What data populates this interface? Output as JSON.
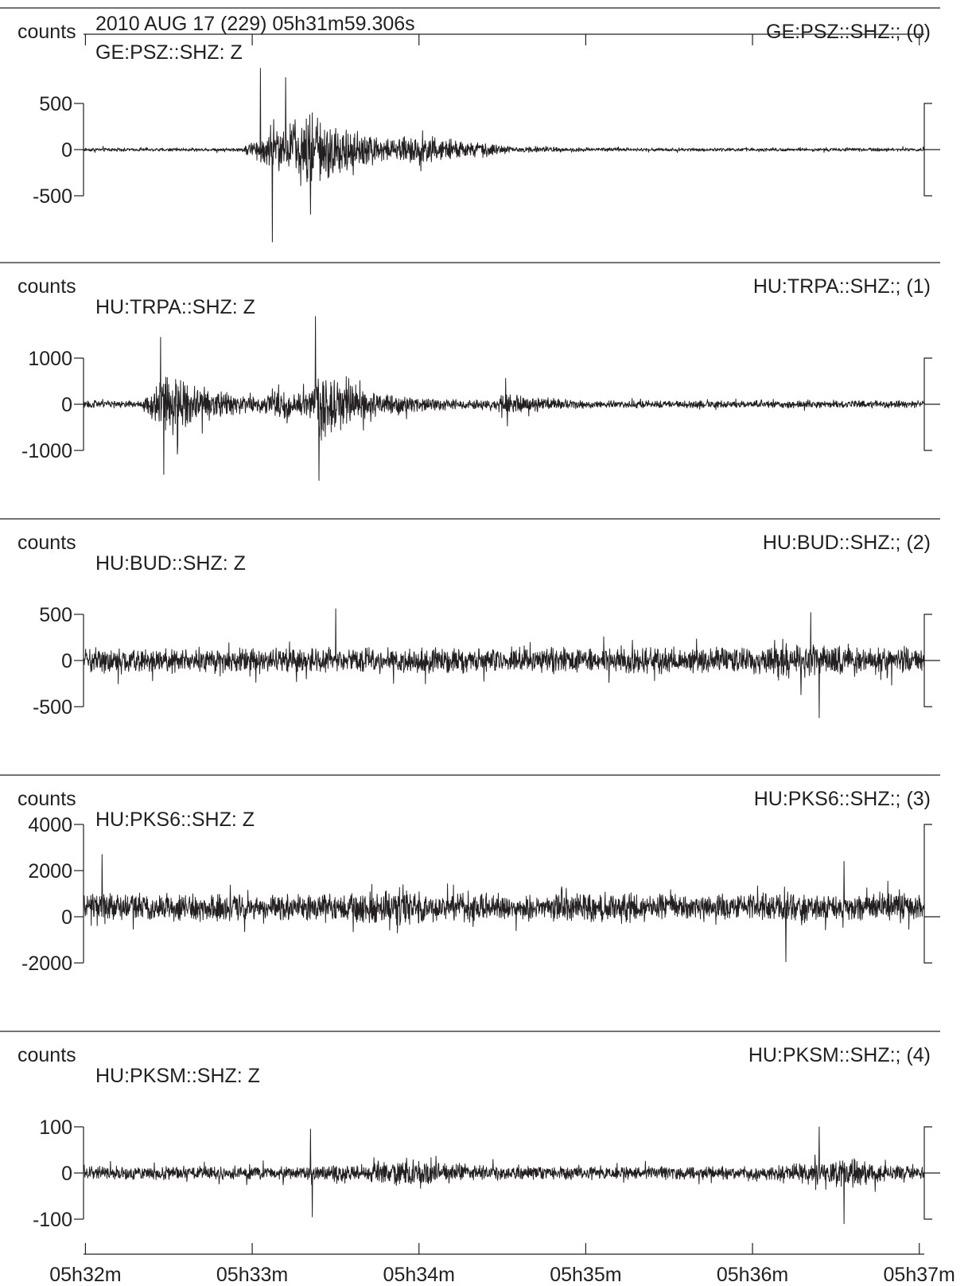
{
  "header": {
    "datetime": "2010 AUG 17 (229)  05h31m59.306s"
  },
  "chart_data": {
    "type": "line",
    "chart_kind": "seismogram",
    "color": "#231f20",
    "xaxis": {
      "start_time": "05h31m59.306s",
      "ticks": [
        "05h32m",
        "05h33m",
        "05h34m",
        "05h35m",
        "05h36m",
        "05h37m"
      ]
    },
    "panels": [
      {
        "unit_label": "counts",
        "right_label": "GE:PSZ::SHZ:; (0)",
        "trace_label": "GE:PSZ::SHZ: Z",
        "yticks": [
          500,
          0,
          -500
        ],
        "ylim": [
          -1000,
          1050
        ],
        "noise": 20,
        "bursts": [
          {
            "t0": 0.93,
            "peak": 1.35,
            "t1": 2.5,
            "amp": 470
          },
          {
            "t0": 1.85,
            "peak": 2.0,
            "t1": 3.2,
            "amp": 90
          }
        ],
        "spikes": [
          {
            "t": 1.05,
            "v": 880
          },
          {
            "t": 1.12,
            "v": -1000
          },
          {
            "t": 1.2,
            "v": 780
          },
          {
            "t": 1.35,
            "v": -700
          }
        ]
      },
      {
        "unit_label": "counts",
        "right_label": "HU:TRPA::SHZ:; (1)",
        "trace_label": "HU:TRPA::SHZ: Z",
        "yticks": [
          1000,
          0,
          -1000
        ],
        "ylim": [
          -1600,
          1900
        ],
        "noise": 90,
        "bursts": [
          {
            "t0": 0.33,
            "peak": 0.5,
            "t1": 1.4,
            "amp": 650
          },
          {
            "t0": 1.05,
            "peak": 1.2,
            "t1": 1.6,
            "amp": 230
          },
          {
            "t0": 1.3,
            "peak": 1.42,
            "t1": 2.3,
            "amp": 750
          },
          {
            "t0": 2.3,
            "peak": 2.6,
            "t1": 3.1,
            "amp": 170
          }
        ],
        "spikes": [
          {
            "t": 1.38,
            "v": 1900
          },
          {
            "t": 1.4,
            "v": -1650
          },
          {
            "t": 0.45,
            "v": 1450
          },
          {
            "t": 0.47,
            "v": -1520
          },
          {
            "t": 2.52,
            "v": 560
          },
          {
            "t": 2.53,
            "v": -470
          }
        ]
      },
      {
        "unit_label": "counts",
        "right_label": "HU:BUD::SHZ:; (2)",
        "trace_label": "HU:BUD::SHZ: Z",
        "yticks": [
          500,
          0,
          -500
        ],
        "ylim": [
          -1100,
          1100
        ],
        "noise": 150,
        "bursts": [
          {
            "t0": 4.05,
            "peak": 4.3,
            "t1": 4.6,
            "amp": 110
          }
        ],
        "spikes": [
          {
            "t": 1.5,
            "v": 560
          },
          {
            "t": 4.4,
            "v": -620
          },
          {
            "t": 4.35,
            "v": 520
          }
        ]
      },
      {
        "unit_label": "counts",
        "right_label": "HU:PKS6::SHZ:; (3)",
        "trace_label": "HU:PKS6::SHZ: Z",
        "yticks": [
          4000,
          2000,
          0,
          -2000
        ],
        "ylim": [
          -4000,
          4000
        ],
        "noise": 650,
        "offset": 400,
        "bursts": [
          {
            "t0": 1.5,
            "peak": 1.9,
            "t1": 2.6,
            "amp": 250
          }
        ],
        "spikes": [
          {
            "t": 0.1,
            "v": 2700
          },
          {
            "t": 4.55,
            "v": 2400
          },
          {
            "t": 4.2,
            "v": -1950
          }
        ]
      },
      {
        "unit_label": "counts",
        "right_label": "HU:PKSM::SHZ:; (4)",
        "trace_label": "HU:PKSM::SHZ: Z",
        "yticks": [
          100,
          0,
          -100
        ],
        "ylim": [
          -270,
          270
        ],
        "noise": 16,
        "bursts": [
          {
            "t0": 1.35,
            "peak": 2.0,
            "t1": 2.8,
            "amp": 12
          },
          {
            "t0": 4.1,
            "peak": 4.6,
            "t1": 5.03,
            "amp": 22
          }
        ],
        "spikes": [
          {
            "t": 1.35,
            "v": 95
          },
          {
            "t": 1.36,
            "v": -95
          },
          {
            "t": 4.55,
            "v": -110
          },
          {
            "t": 4.4,
            "v": 100
          }
        ]
      }
    ]
  }
}
